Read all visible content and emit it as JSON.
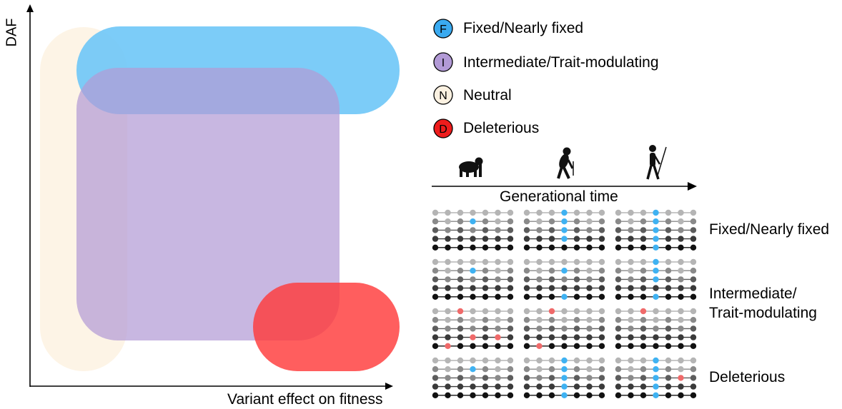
{
  "axes": {
    "y_label": "DAF",
    "x_label": "Variant effect on fitness"
  },
  "legend": [
    {
      "letter": "F",
      "label": "Fixed/Nearly fixed",
      "color": "#3aaaf0"
    },
    {
      "letter": "I",
      "label": "Intermediate/Trait-modulating",
      "color": "#b29ad6"
    },
    {
      "letter": "N",
      "label": "Neutral",
      "color": "#fbf1e1"
    },
    {
      "letter": "D",
      "label": "Deleterious",
      "color": "#ee1c1c"
    }
  ],
  "timeline": {
    "label": "Generational time"
  },
  "panel_rows": [
    {
      "label_lines": [
        "Fixed/Nearly fixed"
      ]
    },
    {
      "label_lines": [
        "Intermediate/",
        "Trait-modulating"
      ]
    },
    {
      "label_lines": []
    },
    {
      "label_lines": [
        "Deleterious"
      ]
    }
  ],
  "colors": {
    "neutral_region": "#fdf3e3",
    "fixed_region": "#7ccdf8",
    "intermediate_region": "#b6a1d7",
    "deleterious_region": "#ff5a5a",
    "marker_blue": "#3fb2f2",
    "marker_red": "#f06a6a"
  }
}
